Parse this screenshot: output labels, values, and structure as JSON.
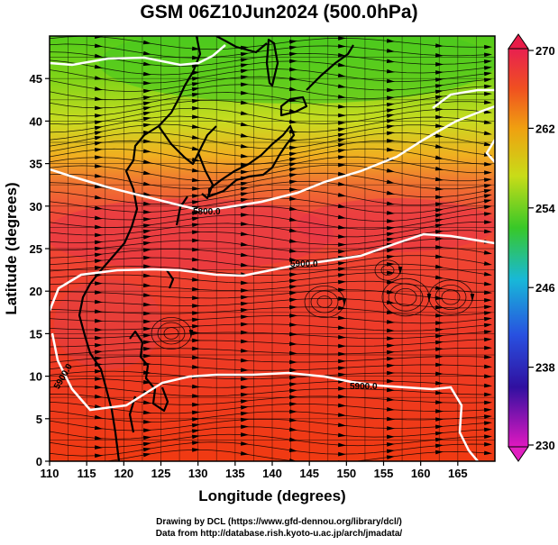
{
  "title": "GSM 06Z10Jun2024 (500.0hPa)",
  "map": {
    "lon_range": [
      110,
      170
    ],
    "lat_range": [
      0,
      50
    ],
    "x_ticks": [
      "110",
      "115",
      "120",
      "125",
      "130",
      "135",
      "140",
      "145",
      "150",
      "155",
      "160",
      "165"
    ],
    "y_ticks": [
      "0",
      "5",
      "10",
      "15",
      "20",
      "25",
      "30",
      "35",
      "40",
      "45"
    ],
    "xlabel": "Longitude (degrees)",
    "ylabel": "Latitude (degrees)",
    "contours": [
      {
        "label": "5800.0"
      },
      {
        "label": "5900.0"
      },
      {
        "label": "5900.0"
      },
      {
        "label": "5900.0"
      }
    ]
  },
  "colorbar": {
    "ticks": [
      "270",
      "262",
      "254",
      "246",
      "238",
      "230"
    ],
    "colors": [
      "#e0204a",
      "#f0900a",
      "#58cc10",
      "#20c0c0",
      "#1e2ab0",
      "#d018b8"
    ]
  },
  "credits": {
    "line1": "Drawing by DCL (https://www.gfd-dennou.org/library/dcl/)",
    "line2": "Data from http://database.rish.kyoto-u.ac.jp/arch/jmadata/"
  }
}
